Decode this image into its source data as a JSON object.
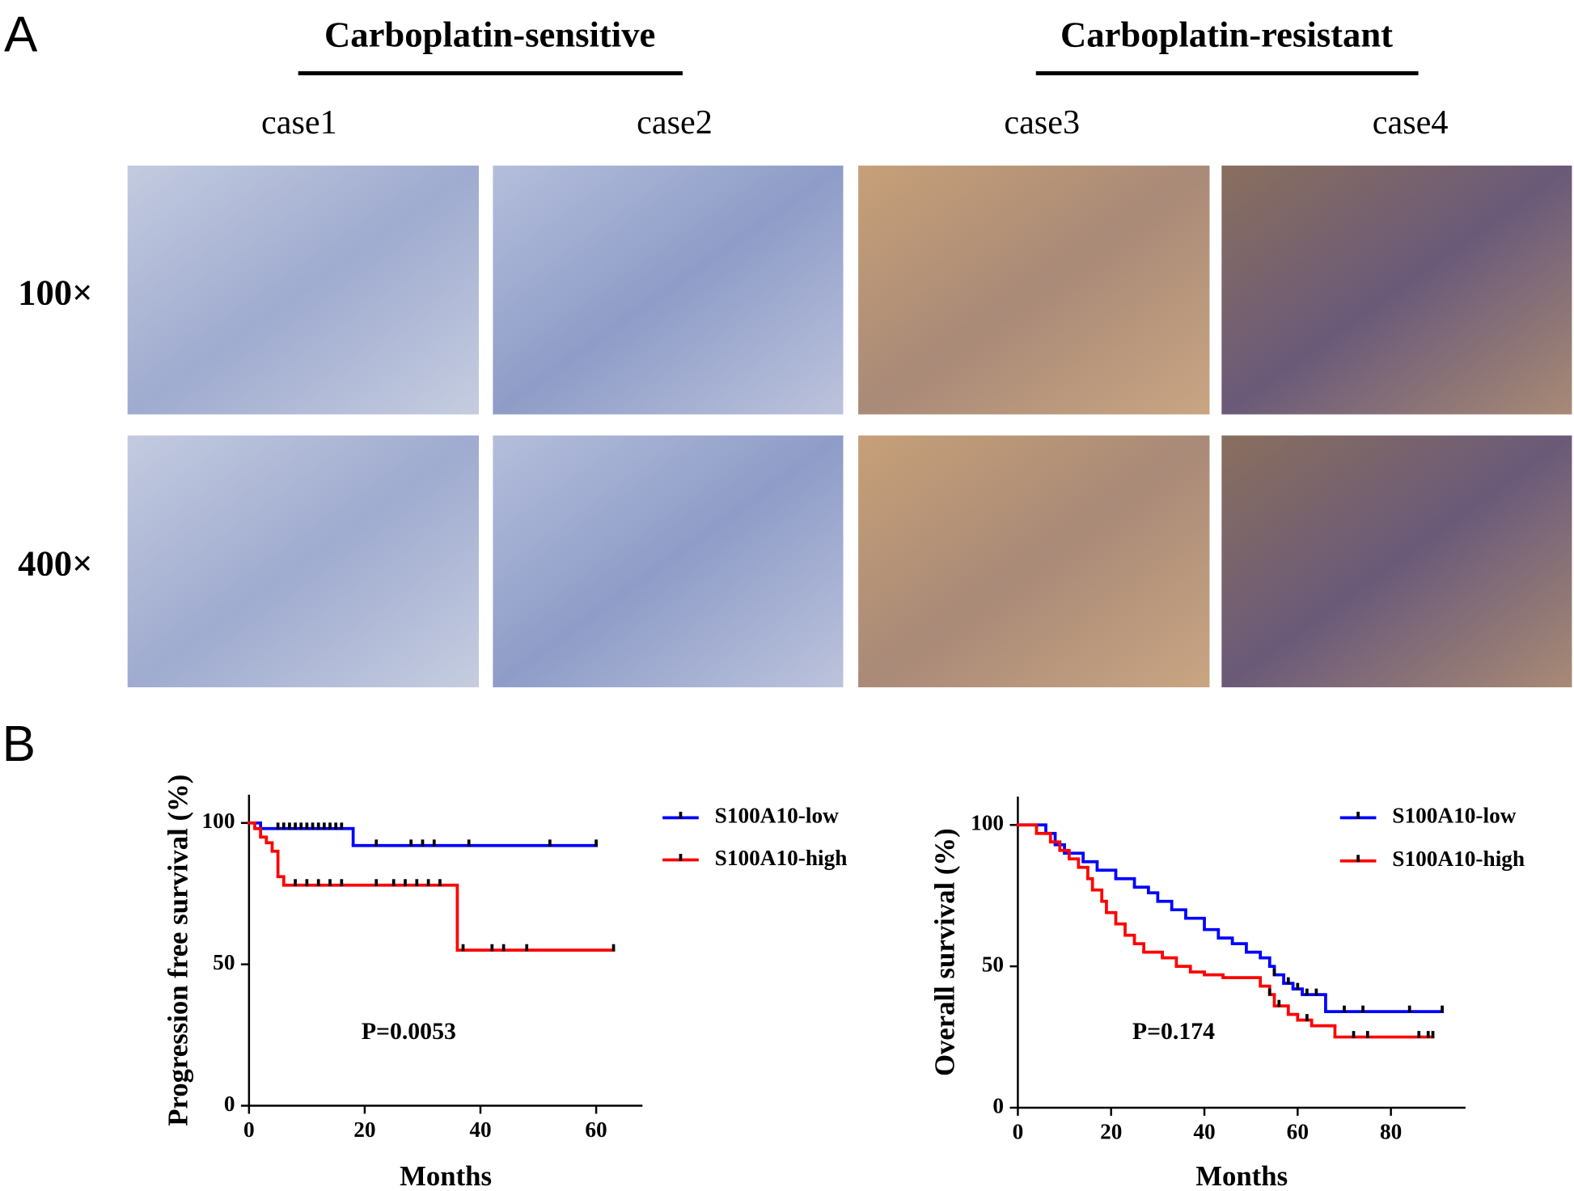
{
  "panels": {
    "a": {
      "label": "A",
      "groups": [
        {
          "title": "Carboplatin-sensitive"
        },
        {
          "title": "Carboplatin-resistant"
        }
      ],
      "cases": [
        "case1",
        "case2",
        "case3",
        "case4"
      ],
      "magnifications": [
        "100×",
        "400×"
      ]
    },
    "b": {
      "label": "B"
    }
  },
  "chart_data": [
    {
      "type": "line",
      "y_label": "Progression free survival (%)",
      "x_label": "Months",
      "xlim": [
        0,
        68
      ],
      "ylim": [
        0,
        110
      ],
      "xticks": [
        0,
        20,
        40,
        60
      ],
      "yticks": [
        0,
        50,
        100
      ],
      "annotation": "P=0.0053",
      "series": [
        {
          "name": "S100A10-low",
          "color": "#0000ff",
          "x": [
            0,
            2,
            18,
            60
          ],
          "values": [
            100,
            98,
            92,
            92
          ],
          "censored_x": [
            5,
            6,
            7,
            8,
            9,
            10,
            11,
            12,
            13,
            14,
            15,
            16,
            22,
            28,
            30,
            32,
            38,
            52,
            60
          ]
        },
        {
          "name": "S100A10-high",
          "color": "#ff0000",
          "x": [
            0,
            1,
            2,
            3,
            4,
            5,
            6,
            36,
            63
          ],
          "values": [
            100,
            98,
            95,
            93,
            90,
            81,
            78,
            55,
            55
          ],
          "censored_x": [
            8,
            10,
            12,
            14,
            16,
            22,
            25,
            27,
            29,
            31,
            33,
            37,
            42,
            44,
            48,
            63
          ]
        }
      ]
    },
    {
      "type": "line",
      "y_label": "Overall survival (%)",
      "x_label": "Months",
      "xlim": [
        0,
        96
      ],
      "ylim": [
        0,
        110
      ],
      "xticks": [
        0,
        20,
        40,
        60,
        80
      ],
      "yticks": [
        0,
        50,
        100
      ],
      "annotation": "P=0.174",
      "series": [
        {
          "name": "S100A10-low",
          "color": "#0000ff",
          "x": [
            0,
            6,
            8,
            10,
            14,
            17,
            21,
            25,
            28,
            30,
            33,
            36,
            40,
            43,
            46,
            49,
            52,
            54,
            55,
            57,
            59,
            61,
            66,
            91
          ],
          "values": [
            100,
            97,
            93,
            90,
            87,
            84,
            81,
            78,
            76,
            73,
            70,
            67,
            63,
            60,
            58,
            55,
            53,
            50,
            47,
            44,
            42,
            40,
            34,
            34
          ],
          "censored_x": [
            55,
            58,
            60,
            62,
            64,
            70,
            74,
            84,
            91
          ]
        },
        {
          "name": "S100A10-high",
          "color": "#ff0000",
          "x": [
            0,
            4,
            7,
            9,
            11,
            13,
            15,
            16,
            18,
            19,
            21,
            23,
            25,
            27,
            31,
            34,
            37,
            40,
            44,
            52,
            54,
            55,
            58,
            60,
            63,
            68,
            89
          ],
          "values": [
            100,
            97,
            94,
            91,
            88,
            85,
            81,
            77,
            73,
            69,
            65,
            61,
            58,
            55,
            53,
            50,
            48,
            47,
            46,
            43,
            40,
            36,
            33,
            31,
            29,
            25,
            25
          ],
          "censored_x": [
            54,
            56,
            62,
            72,
            75,
            86,
            88,
            89
          ]
        }
      ]
    }
  ]
}
